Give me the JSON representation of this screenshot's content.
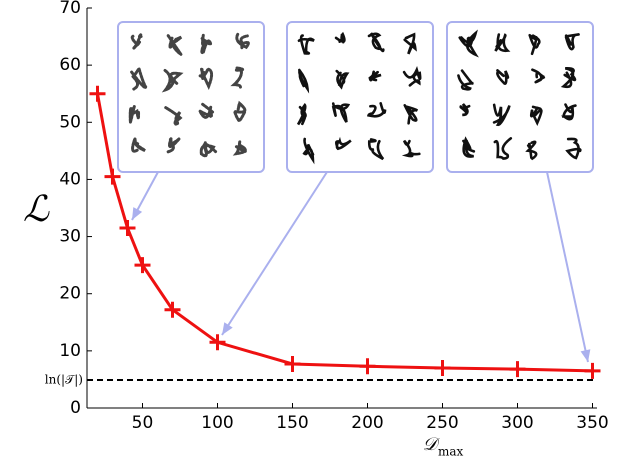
{
  "chart_data": {
    "type": "line",
    "x_label": "𝒟",
    "x_label_sub": "max",
    "y_label": "ℒ",
    "x": [
      20,
      30,
      40,
      50,
      70,
      100,
      150,
      200,
      250,
      300,
      350
    ],
    "series": [
      {
        "color": "#ee1111",
        "values": [
          55,
          40.5,
          31.5,
          25,
          17.2,
          11.5,
          7.7,
          7.3,
          7.0,
          6.8,
          6.5
        ]
      }
    ],
    "hline": {
      "value": 4.9,
      "label": "ln(|𝒯|)"
    },
    "xlim": [
      13,
      353
    ],
    "xticks": [
      50,
      100,
      150,
      200,
      250,
      300,
      350
    ],
    "ylim": [
      0,
      70
    ],
    "yticks": [
      0,
      10,
      20,
      30,
      40,
      50,
      60,
      70
    ]
  }
}
